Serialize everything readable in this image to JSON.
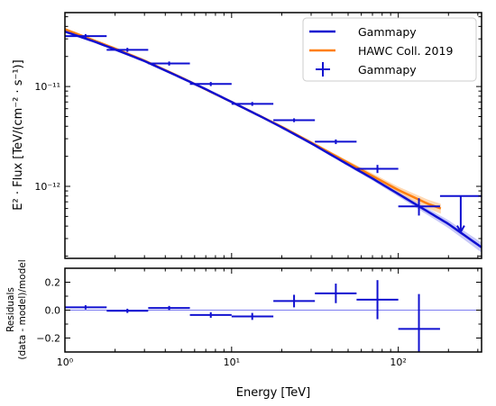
{
  "chart_data": [
    {
      "type": "line",
      "panel": "spectrum",
      "xlabel": "Energy [TeV]",
      "ylabel": "E² · Flux [TeV/(cm⁻² · s⁻¹)]",
      "x_scale": "log",
      "y_scale": "log",
      "xlim": [
        1,
        316
      ],
      "ylim": [
        1.9e-13,
        5.5e-11
      ],
      "y_ticks": [
        1e-12,
        1e-11
      ],
      "y_tick_labels": [
        "10⁻¹²",
        "10⁻¹¹"
      ],
      "legend_position": "top-right",
      "legend": [
        "Gammapy",
        "HAWC Coll. 2019",
        "Gammapy"
      ],
      "colors": {
        "gammapy": "#1010d0",
        "hawc": "#ff7f0e",
        "gammapy_band": "#9a9cf0",
        "hawc_band": "#ffbf80"
      },
      "series": [
        {
          "name": "Gammapy",
          "kind": "model",
          "x": [
            1,
            1.5,
            2,
            3,
            5,
            7,
            10,
            15,
            20,
            30,
            50,
            70,
            100,
            150,
            200,
            316
          ],
          "y": [
            3.55e-11,
            2.82e-11,
            2.35e-11,
            1.8e-11,
            1.22e-11,
            9.4e-12,
            7e-12,
            5e-12,
            3.9e-12,
            2.7e-12,
            1.65e-12,
            1.2e-12,
            8.4e-13,
            5.6e-13,
            4.2e-13,
            2.45e-13
          ]
        },
        {
          "name": "HAWC Coll. 2019",
          "kind": "model",
          "x": [
            1,
            2,
            3,
            5,
            10,
            20,
            30,
            50,
            70,
            100,
            150,
            180
          ],
          "y": [
            3.75e-11,
            2.4e-11,
            1.82e-11,
            1.23e-11,
            7e-12,
            3.95e-12,
            2.75e-12,
            1.72e-12,
            1.27e-12,
            9.2e-13,
            6.7e-13,
            6e-13
          ]
        },
        {
          "name": "Gammapy",
          "kind": "flux_points",
          "x": [
            1.33,
            2.37,
            4.22,
            7.5,
            13.3,
            23.7,
            42.2,
            75,
            133,
            237
          ],
          "x_lo": [
            1.0,
            1.78,
            3.16,
            5.62,
            10.0,
            17.8,
            31.6,
            56.2,
            100,
            178
          ],
          "x_hi": [
            1.78,
            3.16,
            5.62,
            10.0,
            17.8,
            31.6,
            56.2,
            100,
            178,
            316
          ],
          "y": [
            3.2e-11,
            2.33e-11,
            1.7e-11,
            1.06e-11,
            6.7e-12,
            4.6e-12,
            2.8e-12,
            1.5e-12,
            6.3e-13,
            8e-13
          ],
          "y_lo": [
            3.05e-11,
            2.22e-11,
            1.62e-11,
            1.01e-11,
            6.4e-12,
            4.4e-12,
            2.65e-12,
            1.36e-12,
            5.1e-13,
            3.5e-13
          ],
          "y_hi": [
            3.35e-11,
            2.44e-11,
            1.78e-11,
            1.11e-11,
            7e-12,
            4.8e-12,
            2.95e-12,
            1.64e-12,
            7.6e-13,
            8e-13
          ],
          "upper_limit_index": 9
        }
      ]
    },
    {
      "type": "scatter",
      "panel": "residuals",
      "xlabel": "Energy [TeV]",
      "ylabel_line1": "Residuals",
      "ylabel_line2": "(data - model)/model",
      "x_scale": "log",
      "xlim": [
        1,
        316
      ],
      "ylim": [
        -0.3,
        0.3
      ],
      "y_ticks": [
        -0.2,
        0.0,
        0.2
      ],
      "y_tick_labels": [
        "−0.2",
        "0.0",
        "0.2"
      ],
      "x_ticks": [
        1,
        10,
        100
      ],
      "x_tick_labels": [
        "10⁰",
        "10¹",
        "10²"
      ],
      "zero_line": 0,
      "series": [
        {
          "name": "Gammapy",
          "x": [
            1.33,
            2.37,
            4.22,
            7.5,
            13.3,
            23.7,
            42.2,
            75,
            133
          ],
          "x_lo": [
            1.0,
            1.78,
            3.16,
            5.62,
            10.0,
            17.8,
            31.6,
            56.2,
            100
          ],
          "x_hi": [
            1.78,
            3.16,
            5.62,
            10.0,
            17.8,
            31.6,
            56.2,
            100,
            178
          ],
          "y": [
            0.02,
            -0.005,
            0.015,
            -0.035,
            -0.045,
            0.065,
            0.12,
            0.075,
            -0.135
          ],
          "y_err": [
            0.015,
            0.015,
            0.015,
            0.02,
            0.025,
            0.045,
            0.07,
            0.14,
            0.25
          ]
        }
      ]
    }
  ]
}
